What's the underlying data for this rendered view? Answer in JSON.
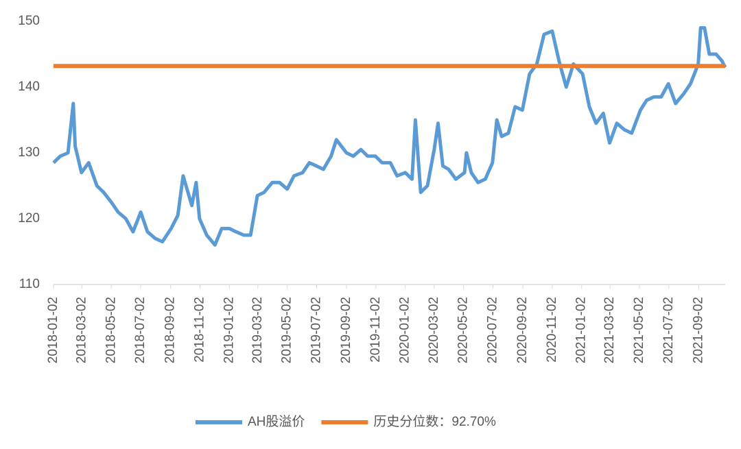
{
  "chart_data": {
    "type": "line",
    "x": [
      "2018-01-02",
      "2018-01-16",
      "2018-02-01",
      "2018-02-12",
      "2018-02-16",
      "2018-03-01",
      "2018-03-16",
      "2018-04-02",
      "2018-04-16",
      "2018-05-02",
      "2018-05-16",
      "2018-06-01",
      "2018-06-16",
      "2018-07-02",
      "2018-07-16",
      "2018-08-01",
      "2018-08-16",
      "2018-09-03",
      "2018-09-17",
      "2018-09-28",
      "2018-10-16",
      "2018-10-25",
      "2018-11-01",
      "2018-11-16",
      "2018-12-03",
      "2018-12-17",
      "2019-01-02",
      "2019-01-16",
      "2019-02-01",
      "2019-02-15",
      "2019-03-01",
      "2019-03-15",
      "2019-04-01",
      "2019-04-16",
      "2019-05-02",
      "2019-05-16",
      "2019-06-03",
      "2019-06-17",
      "2019-07-02",
      "2019-07-16",
      "2019-08-01",
      "2019-08-12",
      "2019-09-02",
      "2019-09-16",
      "2019-10-02",
      "2019-10-16",
      "2019-11-01",
      "2019-11-15",
      "2019-12-02",
      "2019-12-16",
      "2020-01-02",
      "2020-01-16",
      "2020-01-23",
      "2020-02-03",
      "2020-02-17",
      "2020-03-02",
      "2020-03-10",
      "2020-03-20",
      "2020-04-01",
      "2020-04-16",
      "2020-05-04",
      "2020-05-08",
      "2020-05-18",
      "2020-06-01",
      "2020-06-16",
      "2020-07-01",
      "2020-07-10",
      "2020-07-20",
      "2020-08-03",
      "2020-08-17",
      "2020-09-01",
      "2020-09-16",
      "2020-10-01",
      "2020-10-16",
      "2020-11-02",
      "2020-11-16",
      "2020-12-01",
      "2020-12-16",
      "2021-01-04",
      "2021-01-18",
      "2021-02-01",
      "2021-02-16",
      "2021-03-01",
      "2021-03-16",
      "2021-04-01",
      "2021-04-16",
      "2021-05-04",
      "2021-05-17",
      "2021-06-01",
      "2021-06-16",
      "2021-07-01",
      "2021-07-16",
      "2021-08-02",
      "2021-08-16",
      "2021-09-01",
      "2021-09-06",
      "2021-09-14",
      "2021-09-24",
      "2021-10-08",
      "2021-10-20",
      "2021-10-27"
    ],
    "series": [
      {
        "name": "AH股溢价",
        "color": "#5b9bd5",
        "values": [
          128.5,
          129.5,
          130,
          137.5,
          131,
          127,
          128.5,
          125,
          124,
          122.5,
          121,
          120,
          118,
          121,
          118,
          117,
          116.5,
          118.5,
          120.5,
          126.5,
          122,
          125.5,
          120,
          117.5,
          116,
          118.5,
          118.5,
          118,
          117.5,
          117.5,
          123.5,
          124,
          125.5,
          125.5,
          124.5,
          126.5,
          127,
          128.5,
          128,
          127.5,
          129.5,
          132,
          130,
          129.5,
          130.5,
          129.5,
          129.5,
          128.5,
          128.5,
          126.5,
          127,
          126,
          135,
          124,
          125,
          130.5,
          134.5,
          128,
          127.5,
          126,
          127,
          130,
          127,
          125.5,
          126,
          128.5,
          135,
          132.5,
          133,
          137,
          136.5,
          142,
          143.5,
          148,
          148.5,
          144,
          140,
          143.5,
          142,
          137,
          134.5,
          136,
          131.5,
          134.5,
          133.5,
          133,
          136.5,
          138,
          138.5,
          138.5,
          140.5,
          137.5,
          139,
          140.5,
          143.5,
          149,
          149,
          145,
          145,
          144,
          143
        ]
      }
    ],
    "reference_line": {
      "name": "历史分位数：92.70%",
      "color": "#ed7d31",
      "value": 143.2
    },
    "xlim": [
      "2018-01-02",
      "2021-10-27"
    ],
    "xticks": [
      "2018-01-02",
      "2018-03-02",
      "2018-05-02",
      "2018-07-02",
      "2018-09-02",
      "2018-11-02",
      "2019-01-02",
      "2019-03-02",
      "2019-05-02",
      "2019-07-02",
      "2019-09-02",
      "2019-11-02",
      "2020-01-02",
      "2020-03-02",
      "2020-05-02",
      "2020-07-02",
      "2020-09-02",
      "2020-11-02",
      "2021-01-02",
      "2021-03-02",
      "2021-05-02",
      "2021-07-02",
      "2021-09-02"
    ],
    "ylim": [
      110,
      150
    ],
    "yticks": [
      110,
      120,
      130,
      140,
      150
    ],
    "grid": false,
    "legend": "bottom"
  }
}
